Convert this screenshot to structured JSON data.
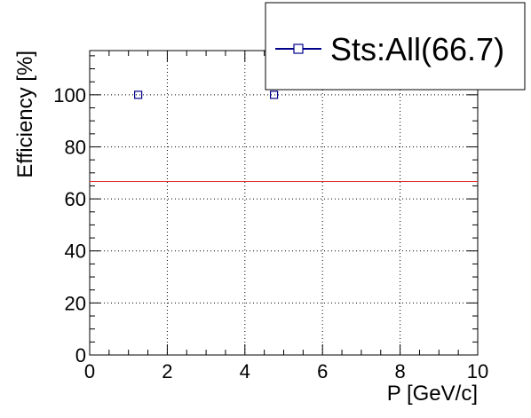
{
  "chart_data": {
    "type": "scatter",
    "title": "",
    "xlabel": "P [GeV/c]",
    "ylabel": "Efficiency [%]",
    "xlim": [
      0,
      10
    ],
    "ylim": [
      0,
      117
    ],
    "x_ticks": [
      "0",
      "2",
      "4",
      "6",
      "8",
      "10"
    ],
    "y_ticks": [
      "0",
      "20",
      "40",
      "60",
      "80",
      "100"
    ],
    "grid": true,
    "legend_position": "top-right",
    "series": [
      {
        "name": "Sts:All(66.7)",
        "color": "#00008b",
        "marker": "open-square",
        "points": [
          {
            "x": 1.25,
            "y": 100
          },
          {
            "x": 4.75,
            "y": 100
          }
        ]
      }
    ],
    "reference_line": {
      "y": 66.7,
      "color": "#e03030"
    }
  }
}
